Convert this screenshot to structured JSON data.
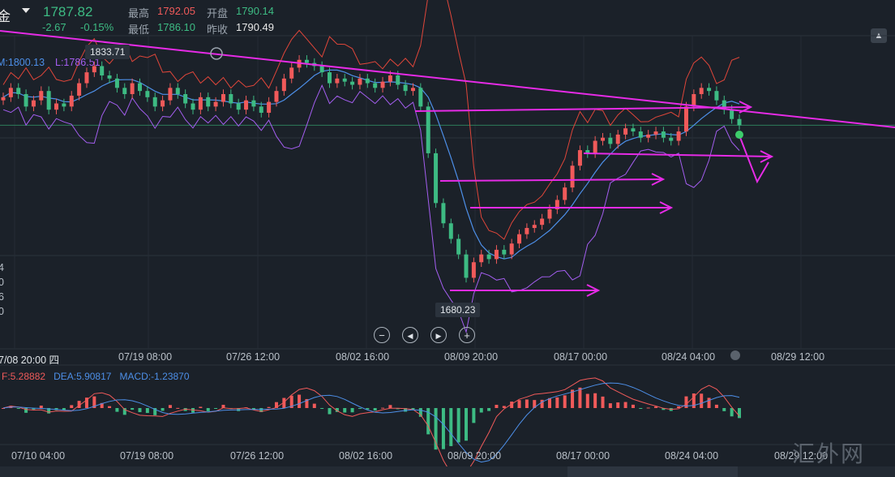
{
  "header": {
    "symbol": "金",
    "price": "1787.82",
    "change": "-2.67",
    "change_pct": "-0.15%",
    "high_label": "最高",
    "high": "1792.05",
    "open_label": "开盘",
    "open": "1790.14",
    "low_label": "最低",
    "low": "1786.10",
    "prev_close_label": "昨收",
    "prev_close": "1790.49"
  },
  "boll_legend": {
    "mid": "M:1800.13",
    "lower": "L:1786.51"
  },
  "macd_legend": {
    "dif": "F:5.28882",
    "dea": "DEA:5.90817",
    "macd": "MACD:-1.23870"
  },
  "markers": {
    "max": "1833.71",
    "min": "1680.23"
  },
  "left_axis_fragments": [
    "4",
    "0",
    "6",
    "0"
  ],
  "time_axis": [
    "7/08 20:00 四",
    "07/19 08:00",
    "07/26 12:00",
    "08/02 16:00",
    "08/09 20:00",
    "08/17 00:00",
    "08/24 04:00",
    "08/29 12:00"
  ],
  "macd_time_axis": [
    "07/10 04:00",
    "07/19 08:00",
    "07/26 12:00",
    "08/02 16:00",
    "08/09 20:00",
    "08/17 00:00",
    "08/24 04:00",
    "08/29 12:00"
  ],
  "watermark": "汇外网",
  "colors": {
    "bg": "#1b2129",
    "up": "#f05a5a",
    "down": "#3dbb83",
    "boll_mid": "#4d8fe8",
    "boll_lower": "#a45ef0",
    "boll_upper": "#e0463a",
    "trend": "#e62be6"
  },
  "chart_data": {
    "type": "candlestick",
    "instrument": "gold",
    "timeframe": "4h",
    "series": [
      {
        "name": "price",
        "values": [
          1806,
          1812,
          1808,
          1800,
          1804,
          1810,
          1798,
          1802,
          1800,
          1807,
          1815,
          1822,
          1826,
          1820,
          1818,
          1812,
          1808,
          1815,
          1810,
          1806,
          1800,
          1804,
          1812,
          1808,
          1802,
          1798,
          1806,
          1800,
          1803,
          1808,
          1802,
          1798,
          1804,
          1800,
          1796,
          1803,
          1810,
          1818,
          1825,
          1830,
          1828,
          1826,
          1822,
          1815,
          1818,
          1816,
          1814,
          1818,
          1815,
          1812,
          1816,
          1820,
          1814,
          1810,
          1812,
          1800,
          1770,
          1738,
          1725,
          1715,
          1705,
          1690,
          1700,
          1705,
          1702,
          1708,
          1705,
          1712,
          1718,
          1722,
          1724,
          1728,
          1734,
          1740,
          1748,
          1762,
          1772,
          1770,
          1778,
          1780,
          1776,
          1782,
          1786,
          1784,
          1780,
          1782,
          1784,
          1780,
          1778,
          1784,
          1800,
          1808,
          1812,
          1810,
          1804,
          1798,
          1792,
          1788
        ]
      }
    ],
    "indicators": {
      "boll": {
        "M": 1800.13,
        "L": 1786.51
      },
      "macd": {
        "DIF": 5.28882,
        "DEA": 5.90817,
        "MACD": -1.2387
      }
    },
    "annotations": {
      "high": 1833.71,
      "low": 1680.23
    },
    "x_ticks": [
      "07/19 08:00",
      "07/26 12:00",
      "08/02 16:00",
      "08/09 20:00",
      "08/17 00:00",
      "08/24 04:00",
      "08/29 12:00"
    ]
  }
}
